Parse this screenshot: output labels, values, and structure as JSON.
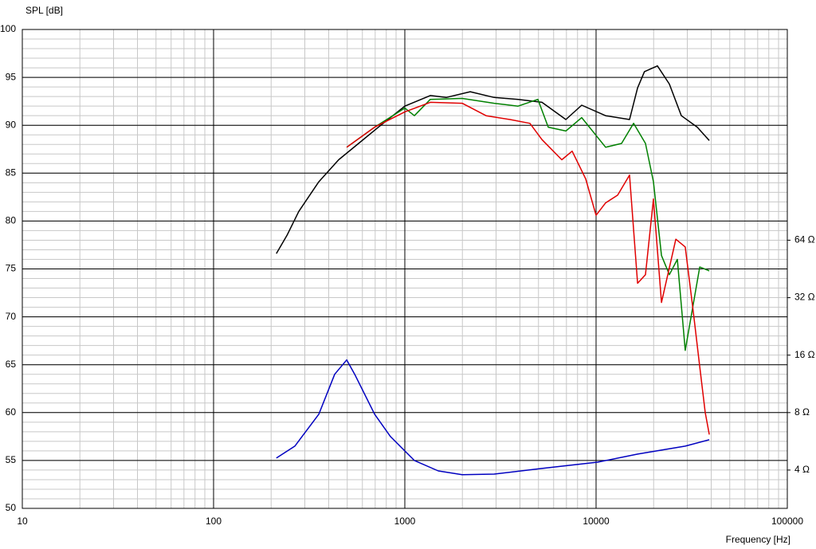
{
  "chart_data": {
    "type": "line",
    "ylabel": "SPL [dB]",
    "xlabel": "Frequency [Hz]",
    "xscale": "log",
    "xlim": [
      10,
      100000
    ],
    "xticks": [
      10,
      100,
      1000,
      10000,
      100000
    ],
    "ylim": [
      50,
      100
    ],
    "yticks": [
      50,
      55,
      60,
      65,
      70,
      75,
      80,
      85,
      90,
      95,
      100
    ],
    "y2scale": "log",
    "y2lim": [
      2.52,
      813
    ],
    "y2ticks": [
      {
        "value": 4,
        "label": "4 Ω"
      },
      {
        "value": 8,
        "label": "8 Ω"
      },
      {
        "value": 16,
        "label": "16 Ω"
      },
      {
        "value": 32,
        "label": "32 Ω"
      },
      {
        "value": 64,
        "label": "64 Ω"
      }
    ],
    "grid": true,
    "series": [
      {
        "color": "#000000",
        "x": [
          213,
          242,
          279,
          355,
          451,
          573,
          728,
          1000,
          1359,
          1647,
          2198,
          2929,
          3908,
          5214,
          6950,
          8414,
          11220,
          14960,
          16480,
          17900,
          20940,
          24170,
          27920,
          33810,
          39080
        ],
        "values": [
          76.6,
          78.5,
          81.0,
          84.1,
          86.4,
          88.1,
          89.8,
          92.0,
          93.1,
          92.9,
          93.5,
          92.9,
          92.7,
          92.4,
          90.6,
          92.1,
          91.0,
          90.6,
          93.9,
          95.6,
          96.2,
          94.3,
          91.0,
          89.8,
          88.4
        ]
      },
      {
        "color": "#008000",
        "x": [
          497,
          695,
          1000,
          1122,
          1359,
          1995,
          2929,
          3908,
          4966,
          5623,
          6950,
          8414,
          11220,
          13590,
          15710,
          18130,
          19950,
          21980,
          24170,
          26600,
          29270,
          34830,
          39080
        ],
        "values": [
          87.7,
          89.8,
          91.8,
          91.0,
          92.7,
          92.8,
          92.3,
          92.0,
          92.7,
          89.8,
          89.4,
          90.8,
          87.7,
          88.1,
          90.2,
          88.1,
          84.1,
          76.4,
          74.4,
          76.0,
          66.5,
          75.2,
          74.8
        ]
      },
      {
        "color": "#e00000",
        "x": [
          497,
          695,
          1000,
          1359,
          1995,
          2661,
          3548,
          4508,
          5214,
          6622,
          7499,
          8826,
          10000,
          11220,
          12970,
          14960,
          16480,
          18130,
          19950,
          21980,
          26120,
          29270,
          32210,
          34830,
          37220,
          39080
        ],
        "values": [
          87.7,
          89.8,
          91.4,
          92.4,
          92.3,
          91.0,
          90.6,
          90.2,
          88.5,
          86.4,
          87.3,
          84.4,
          80.6,
          81.9,
          82.7,
          84.8,
          73.5,
          74.4,
          82.3,
          71.5,
          78.1,
          77.3,
          70.6,
          64.8,
          60.0,
          57.7
        ]
      },
      {
        "color": "#0000c0",
        "axis": "y2",
        "x": [
          213,
          266,
          355,
          430,
          497,
          547,
          695,
          841,
          1122,
          1496,
          1995,
          2929,
          5214,
          10190,
          16480,
          29270,
          39080
        ],
        "values": [
          4.62,
          5.34,
          7.85,
          12.7,
          15.1,
          12.7,
          7.85,
          5.99,
          4.49,
          3.96,
          3.78,
          3.81,
          4.08,
          4.4,
          4.85,
          5.34,
          5.77
        ]
      }
    ]
  }
}
